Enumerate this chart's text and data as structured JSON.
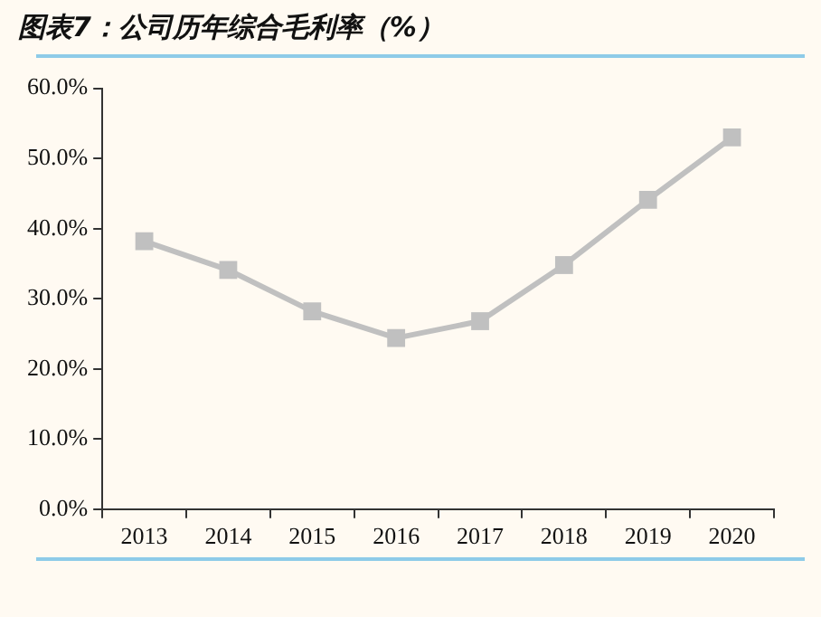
{
  "chart_data": {
    "type": "line",
    "title": "图表7：公司历年综合毛利率（%）",
    "categories": [
      "2013",
      "2014",
      "2015",
      "2016",
      "2017",
      "2018",
      "2019",
      "2020"
    ],
    "series": [
      {
        "color": "#c0c0c0",
        "values": [
          38.2,
          34.1,
          28.2,
          24.4,
          26.8,
          34.8,
          44.1,
          53.0
        ]
      }
    ],
    "ylim": [
      0,
      60
    ],
    "yticks": [
      {
        "value": 0,
        "label": "0.0%"
      },
      {
        "value": 10,
        "label": "10.0%"
      },
      {
        "value": 20,
        "label": "20.0%"
      },
      {
        "value": 30,
        "label": "30.0%"
      },
      {
        "value": 40,
        "label": "40.0%"
      },
      {
        "value": 50,
        "label": "50.0%"
      },
      {
        "value": 60,
        "label": "60.0%"
      }
    ],
    "grid": false,
    "legend": false,
    "marker": "square",
    "line_style": "solid"
  }
}
